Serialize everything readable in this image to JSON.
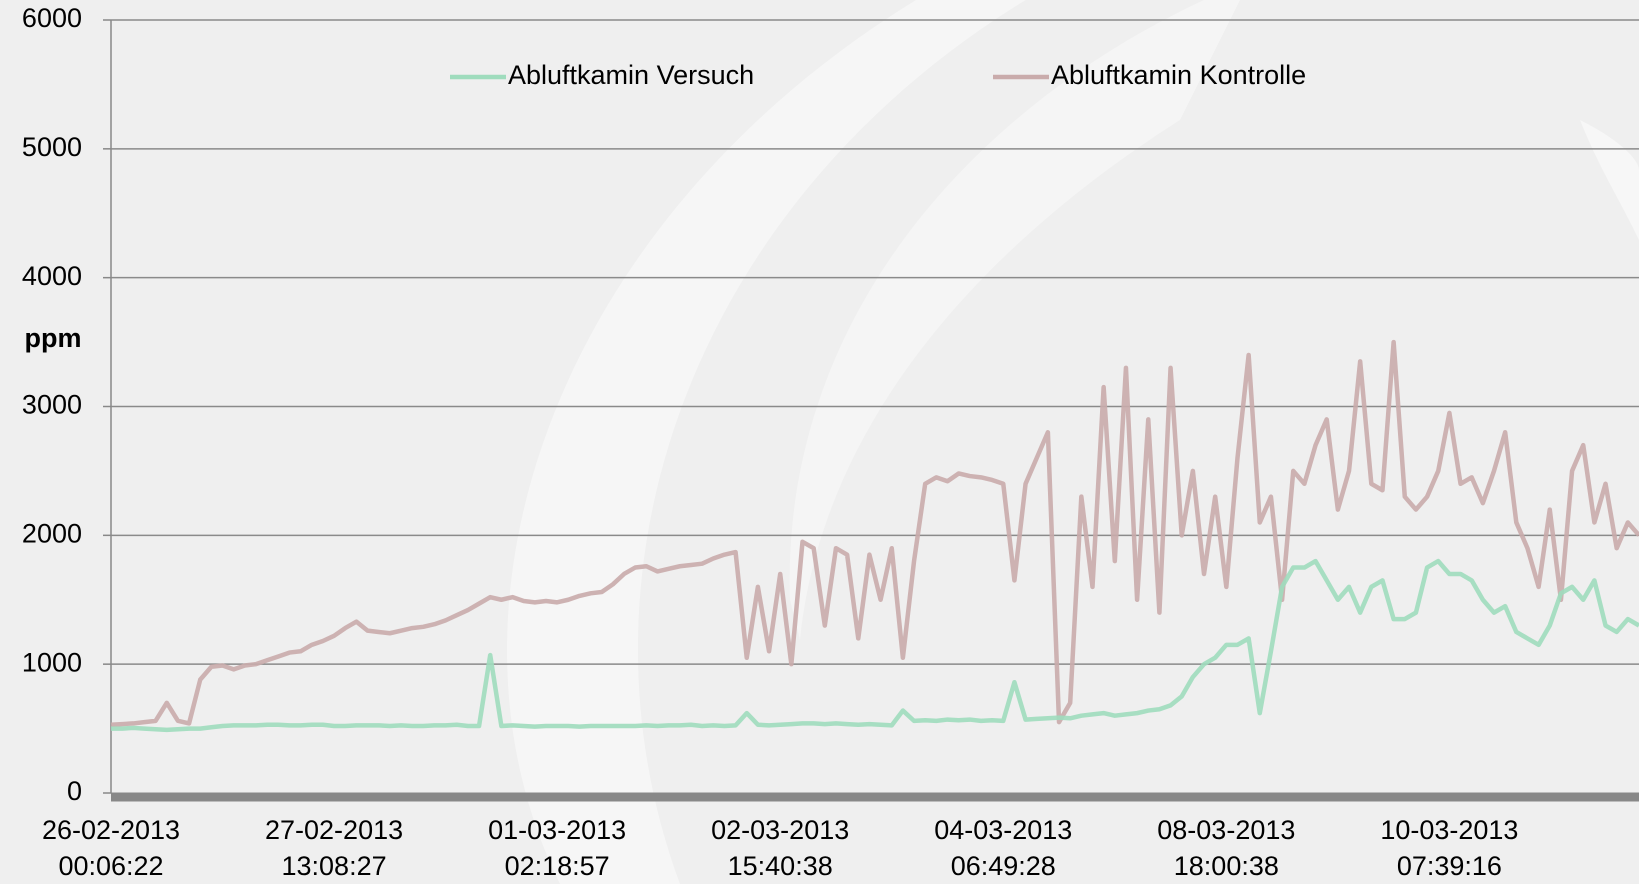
{
  "chart_data": {
    "type": "line",
    "y_label": "ppm",
    "categories": [
      "26-02-2013\n00:06:22",
      null,
      null,
      null,
      null,
      null,
      null,
      null,
      null,
      null,
      null,
      null,
      null,
      null,
      null,
      null,
      null,
      null,
      null,
      null,
      "27-02-2013\n13:08:27",
      null,
      null,
      null,
      null,
      null,
      null,
      null,
      null,
      null,
      null,
      null,
      null,
      null,
      null,
      null,
      null,
      null,
      null,
      null,
      "01-03-2013\n02:18:57",
      null,
      null,
      null,
      null,
      null,
      null,
      null,
      null,
      null,
      null,
      null,
      null,
      null,
      null,
      null,
      null,
      null,
      null,
      null,
      "02-03-2013\n15:40:38",
      null,
      null,
      null,
      null,
      null,
      null,
      null,
      null,
      null,
      null,
      null,
      null,
      null,
      null,
      null,
      null,
      null,
      null,
      null,
      "04-03-2013\n06:49:28",
      null,
      null,
      null,
      null,
      null,
      null,
      null,
      null,
      null,
      null,
      null,
      null,
      null,
      null,
      null,
      null,
      null,
      null,
      null,
      "08-03-2013\n18:00:38",
      null,
      null,
      null,
      null,
      null,
      null,
      null,
      null,
      null,
      null,
      null,
      null,
      null,
      null,
      null,
      null,
      null,
      null,
      null,
      "10-03-2013\n07:39:16",
      null,
      null,
      null,
      null,
      null,
      null,
      null,
      null,
      null,
      null,
      null,
      null,
      null,
      null,
      null,
      null,
      null
    ],
    "series": [
      {
        "name": "Abluftkamin Versuch",
        "color": "#9fdcbd",
        "values": [
          500,
          500,
          505,
          500,
          495,
          490,
          495,
          500,
          500,
          510,
          520,
          525,
          525,
          525,
          530,
          530,
          525,
          525,
          530,
          530,
          520,
          520,
          525,
          525,
          525,
          520,
          525,
          520,
          520,
          525,
          525,
          530,
          520,
          520,
          1070,
          520,
          525,
          520,
          515,
          520,
          520,
          520,
          515,
          520,
          520,
          520,
          520,
          520,
          525,
          520,
          525,
          525,
          530,
          520,
          525,
          520,
          525,
          620,
          530,
          525,
          530,
          535,
          540,
          540,
          535,
          540,
          535,
          530,
          535,
          530,
          525,
          640,
          560,
          565,
          560,
          570,
          565,
          570,
          560,
          565,
          560,
          860,
          570,
          575,
          580,
          585,
          580,
          600,
          610,
          620,
          600,
          610,
          620,
          640,
          650,
          680,
          750,
          900,
          1000,
          1050,
          1150,
          1150,
          1200,
          620,
          1100,
          1600,
          1750,
          1750,
          1800,
          1650,
          1500,
          1600,
          1400,
          1600,
          1650,
          1350,
          1350,
          1400,
          1750,
          1800,
          1700,
          1700,
          1650,
          1500,
          1400,
          1450,
          1250,
          1200,
          1150,
          1300,
          1550,
          1600,
          1500,
          1650,
          1300,
          1250,
          1350,
          1300
        ]
      },
      {
        "name": "Abluftkamin Kontrolle",
        "color": "#c9abab",
        "values": [
          530,
          535,
          540,
          550,
          560,
          700,
          560,
          540,
          880,
          980,
          990,
          960,
          990,
          1000,
          1030,
          1060,
          1090,
          1100,
          1150,
          1180,
          1220,
          1280,
          1330,
          1260,
          1250,
          1240,
          1260,
          1280,
          1290,
          1310,
          1340,
          1380,
          1420,
          1470,
          1520,
          1500,
          1520,
          1490,
          1480,
          1490,
          1480,
          1500,
          1530,
          1550,
          1560,
          1620,
          1700,
          1750,
          1760,
          1720,
          1740,
          1760,
          1770,
          1780,
          1820,
          1850,
          1870,
          1050,
          1600,
          1100,
          1700,
          1000,
          1950,
          1900,
          1300,
          1900,
          1850,
          1200,
          1850,
          1500,
          1900,
          1050,
          1800,
          2400,
          2450,
          2420,
          2480,
          2460,
          2450,
          2430,
          2400,
          1650,
          2400,
          2600,
          2800,
          550,
          700,
          2300,
          1600,
          3150,
          1800,
          3300,
          1500,
          2900,
          1400,
          3300,
          2000,
          2500,
          1700,
          2300,
          1600,
          2600,
          3400,
          2100,
          2300,
          1500,
          2500,
          2400,
          2700,
          2900,
          2200,
          2500,
          3350,
          2400,
          2350,
          3500,
          2300,
          2200,
          2300,
          2500,
          2950,
          2400,
          2450,
          2250,
          2500,
          2800,
          2100,
          1900,
          1600,
          2200,
          1500,
          2500,
          2700,
          2100,
          2400,
          1900,
          2100,
          2000
        ]
      }
    ],
    "ylim": [
      0,
      6000
    ],
    "yticks": [
      0,
      1000,
      2000,
      3000,
      4000,
      5000,
      6000
    ],
    "grid": true,
    "legend": "top"
  }
}
